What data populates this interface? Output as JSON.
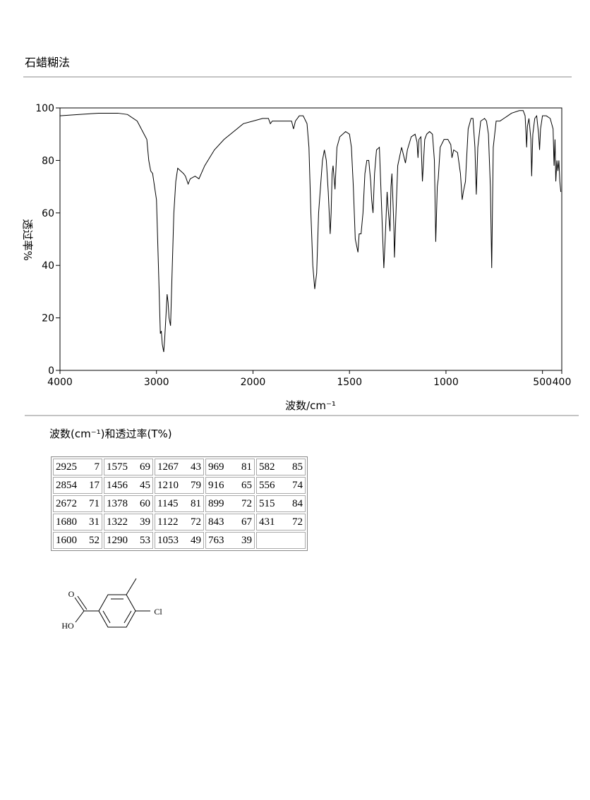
{
  "header": {
    "title": "石蜡糊法"
  },
  "chart_data": {
    "type": "line",
    "xlabel": "波数/cm⁻¹",
    "ylabel": "透过率%",
    "color": "#000000",
    "xlim": [
      4000,
      400
    ],
    "x_scale_break": 2000,
    "xticks": [
      4000,
      3000,
      2000,
      1500,
      1000,
      500,
      400
    ],
    "ylim": [
      0,
      100
    ],
    "yticks": [
      0,
      20,
      40,
      60,
      80,
      100
    ],
    "x": [
      4000,
      3800,
      3600,
      3400,
      3300,
      3200,
      3100,
      3080,
      3060,
      3040,
      3000,
      2980,
      2960,
      2950,
      2940,
      2925,
      2915,
      2900,
      2890,
      2880,
      2870,
      2854,
      2840,
      2820,
      2800,
      2780,
      2750,
      2720,
      2700,
      2672,
      2650,
      2600,
      2560,
      2500,
      2400,
      2300,
      2200,
      2100,
      2000,
      1950,
      1920,
      1910,
      1900,
      1850,
      1800,
      1790,
      1780,
      1760,
      1740,
      1720,
      1710,
      1700,
      1690,
      1680,
      1670,
      1660,
      1640,
      1630,
      1620,
      1610,
      1600,
      1595,
      1590,
      1585,
      1575,
      1565,
      1550,
      1520,
      1500,
      1490,
      1480,
      1470,
      1456,
      1450,
      1440,
      1430,
      1420,
      1410,
      1400,
      1390,
      1385,
      1378,
      1370,
      1360,
      1345,
      1335,
      1322,
      1315,
      1305,
      1300,
      1290,
      1285,
      1280,
      1270,
      1267,
      1260,
      1250,
      1230,
      1210,
      1200,
      1180,
      1160,
      1150,
      1145,
      1140,
      1130,
      1122,
      1110,
      1100,
      1085,
      1070,
      1060,
      1053,
      1045,
      1040,
      1030,
      1010,
      990,
      975,
      969,
      960,
      940,
      925,
      916,
      910,
      899,
      895,
      885,
      870,
      860,
      850,
      843,
      835,
      820,
      800,
      790,
      780,
      770,
      763,
      755,
      740,
      720,
      700,
      680,
      660,
      620,
      600,
      590,
      585,
      582,
      578,
      570,
      560,
      556,
      550,
      540,
      530,
      520,
      515,
      510,
      500,
      480,
      460,
      445,
      440,
      435,
      431,
      425,
      420,
      415,
      410,
      405
    ],
    "values": [
      97,
      97.5,
      98,
      98,
      97.5,
      95,
      88,
      80,
      76,
      75,
      65,
      40,
      14,
      15,
      10,
      7,
      12,
      22,
      29,
      26,
      20,
      17,
      35,
      60,
      72,
      77,
      76,
      75,
      74,
      71,
      73,
      74,
      73,
      78,
      84,
      88,
      91,
      94,
      95,
      96,
      96,
      94,
      95,
      95,
      95,
      92,
      95,
      97,
      97,
      94,
      85,
      60,
      40,
      31,
      37,
      60,
      80,
      84,
      80,
      68,
      52,
      60,
      75,
      78,
      69,
      85,
      89,
      91,
      90,
      85,
      70,
      50,
      45,
      52,
      52,
      60,
      75,
      80,
      80,
      72,
      65,
      60,
      75,
      84,
      85,
      65,
      39,
      50,
      68,
      62,
      53,
      70,
      75,
      55,
      43,
      58,
      78,
      85,
      79,
      84,
      89,
      90,
      87,
      81,
      88,
      89,
      72,
      88,
      90,
      91,
      90,
      80,
      49,
      70,
      73,
      85,
      88,
      88,
      86,
      81,
      84,
      83,
      75,
      65,
      68,
      72,
      78,
      92,
      96,
      96,
      85,
      67,
      85,
      95,
      96,
      95,
      90,
      70,
      39,
      85,
      95,
      95,
      96,
      97,
      98,
      99,
      99,
      97,
      90,
      85,
      93,
      96,
      88,
      74,
      90,
      96,
      97,
      90,
      84,
      92,
      97,
      97,
      96,
      92,
      78,
      88,
      72,
      80,
      76,
      80,
      72,
      68
    ]
  },
  "table": {
    "caption": "波数(cm⁻¹)和透过率(T%)",
    "columns": [
      [
        [
          2925,
          7
        ],
        [
          2854,
          17
        ],
        [
          2672,
          71
        ],
        [
          1680,
          31
        ],
        [
          1600,
          52
        ]
      ],
      [
        [
          1575,
          69
        ],
        [
          1456,
          45
        ],
        [
          1378,
          60
        ],
        [
          1322,
          39
        ],
        [
          1290,
          53
        ]
      ],
      [
        [
          1267,
          43
        ],
        [
          1210,
          79
        ],
        [
          1145,
          81
        ],
        [
          1122,
          72
        ],
        [
          1053,
          49
        ]
      ],
      [
        [
          969,
          81
        ],
        [
          916,
          65
        ],
        [
          899,
          72
        ],
        [
          843,
          67
        ],
        [
          763,
          39
        ]
      ],
      [
        [
          582,
          85
        ],
        [
          556,
          74
        ],
        [
          515,
          84
        ],
        [
          431,
          72
        ]
      ]
    ]
  },
  "molecule": {
    "atoms": [
      "O",
      "HO",
      "Cl"
    ]
  }
}
